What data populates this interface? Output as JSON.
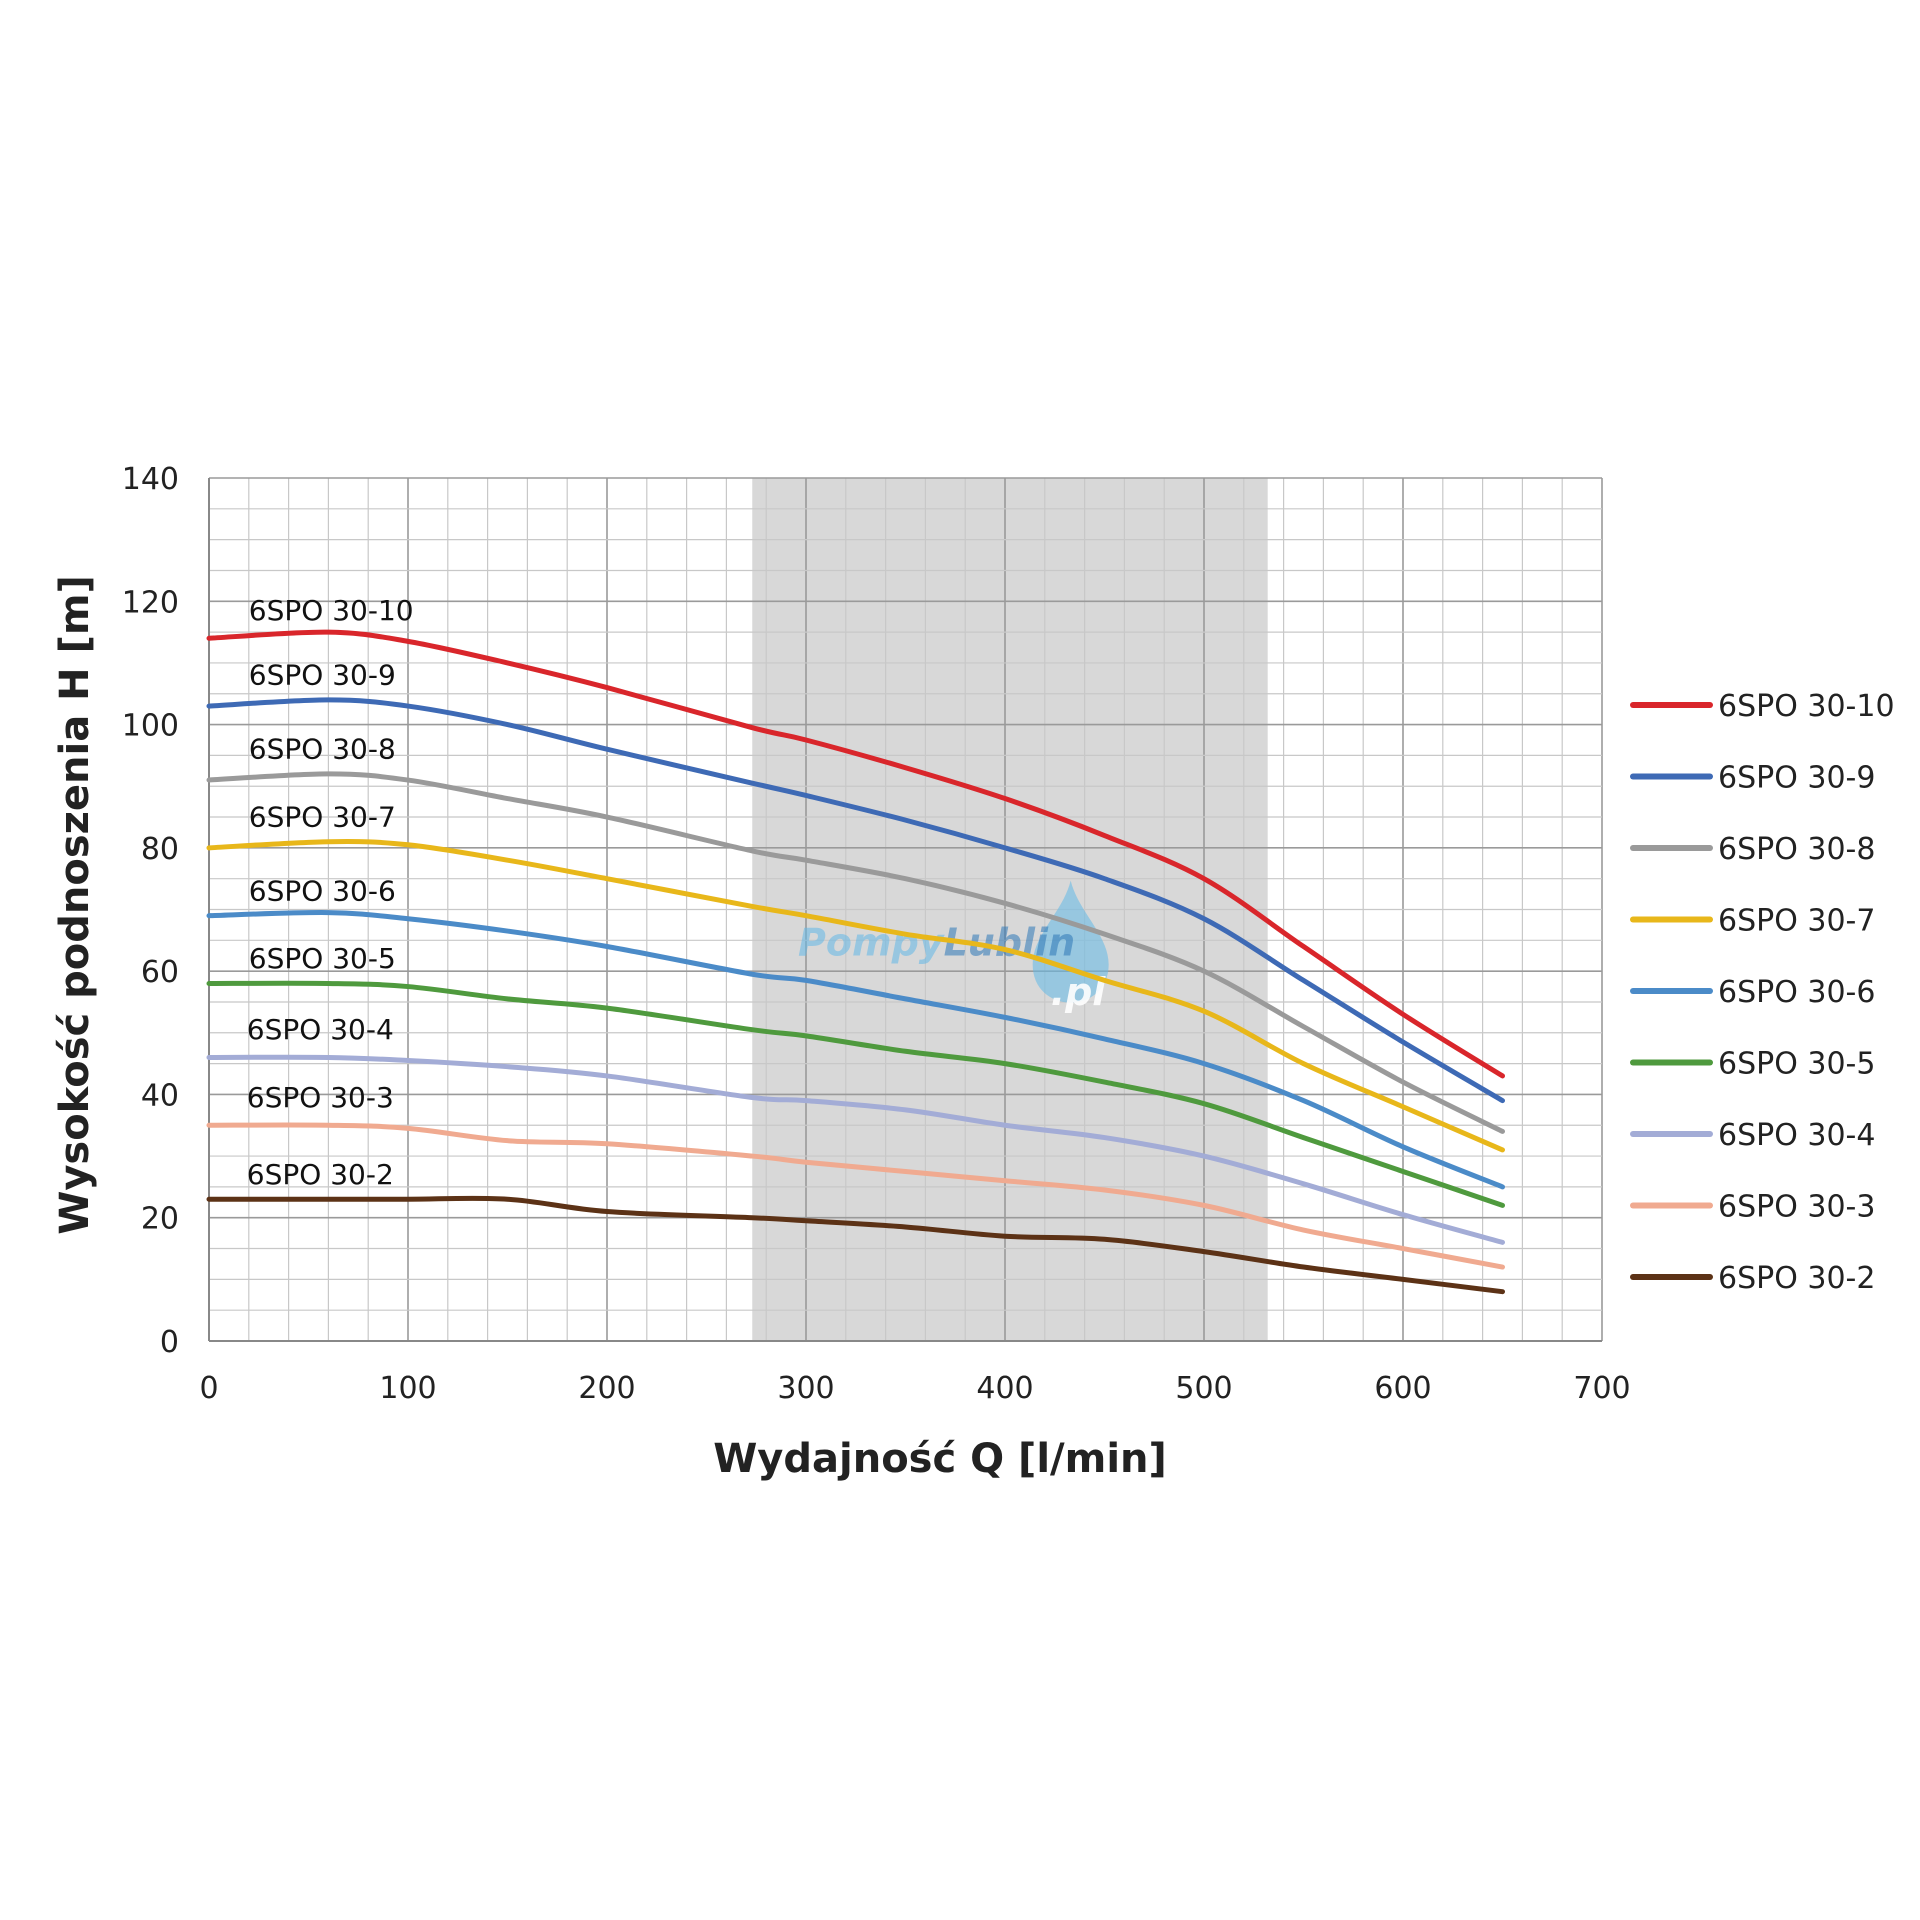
{
  "chart_data": {
    "type": "line",
    "xlabel": "Wydajność Q [l/min]",
    "ylabel": "Wysokość podnoszenia H [m]",
    "xlim": [
      0,
      700
    ],
    "ylim": [
      0,
      140
    ],
    "xticks": [
      0,
      100,
      200,
      300,
      400,
      500,
      600,
      700
    ],
    "yticks": [
      0,
      20,
      40,
      60,
      80,
      100,
      120,
      140
    ],
    "x_minor_step": 20,
    "y_minor_step": 5,
    "grid": true,
    "shaded_x_range": [
      273,
      532
    ],
    "legend_position": "right",
    "x": [
      0,
      60,
      100,
      150,
      200,
      273,
      300,
      350,
      400,
      450,
      500,
      550,
      600,
      650
    ],
    "series": [
      {
        "name": "6SPO 30-10",
        "color": "#d9262b",
        "values": [
          114,
          115,
          113.5,
          110,
          106,
          99.5,
          97.5,
          93,
          88,
          82,
          75,
          64,
          53,
          43
        ]
      },
      {
        "name": "6SPO 30-9",
        "color": "#3e6ab5",
        "values": [
          103,
          104,
          103,
          100,
          96,
          90.5,
          88.5,
          84.5,
          80,
          75,
          68.5,
          58.5,
          48.5,
          39
        ]
      },
      {
        "name": "6SPO 30-8",
        "color": "#9a9a9a",
        "values": [
          91,
          92,
          91,
          88,
          85,
          79.5,
          78,
          75,
          71,
          66,
          60,
          51,
          42,
          34
        ]
      },
      {
        "name": "6SPO 30-7",
        "color": "#e8b71a",
        "values": [
          80,
          81,
          80.5,
          78,
          75,
          70.5,
          69,
          66,
          63.5,
          58.5,
          53.5,
          45,
          38,
          31
        ]
      },
      {
        "name": "6SPO 30-6",
        "color": "#4b8bc8",
        "values": [
          69,
          69.5,
          68.5,
          66.5,
          64,
          59.5,
          58.5,
          55.5,
          52.5,
          49,
          45,
          39,
          31.5,
          25
        ]
      },
      {
        "name": "6SPO 30-5",
        "color": "#4f9a3e",
        "values": [
          58,
          58,
          57.5,
          55.5,
          54,
          50.5,
          49.5,
          47,
          45,
          42,
          38.5,
          33,
          27.5,
          22
        ]
      },
      {
        "name": "6SPO 30-4",
        "color": "#a3acd6",
        "values": [
          46,
          46,
          45.5,
          44.5,
          43,
          39.5,
          39,
          37.5,
          35,
          33,
          30,
          25.5,
          20.5,
          16
        ]
      },
      {
        "name": "6SPO 30-3",
        "color": "#f0aa90",
        "values": [
          35,
          35,
          34.5,
          32.5,
          32,
          30,
          29,
          27.5,
          26,
          24.5,
          22,
          18,
          15,
          12
        ]
      },
      {
        "name": "6SPO 30-2",
        "color": "#5c3216",
        "values": [
          23,
          23,
          23,
          23,
          21,
          20,
          19.5,
          18.5,
          17,
          16.5,
          14.5,
          12,
          10,
          8
        ]
      }
    ],
    "curve_labels": [
      {
        "text": "6SPO 30-10",
        "x": 20,
        "y": 117
      },
      {
        "text": "6SPO 30-9",
        "x": 20,
        "y": 106.5
      },
      {
        "text": "6SPO 30-8",
        "x": 20,
        "y": 94.5
      },
      {
        "text": "6SPO 30-7",
        "x": 20,
        "y": 83.5
      },
      {
        "text": "6SPO 30-6",
        "x": 20,
        "y": 71.5
      },
      {
        "text": "6SPO 30-5",
        "x": 20,
        "y": 60.5
      },
      {
        "text": "6SPO 30-4",
        "x": 19,
        "y": 49
      },
      {
        "text": "6SPO 30-3",
        "x": 19,
        "y": 38
      },
      {
        "text": "6SPO 30-2",
        "x": 19,
        "y": 25.5
      }
    ]
  },
  "watermark": {
    "text_left": "Pompy",
    "text_right": "Lublin",
    "suffix": ".pl",
    "color": "#63b9e8"
  }
}
